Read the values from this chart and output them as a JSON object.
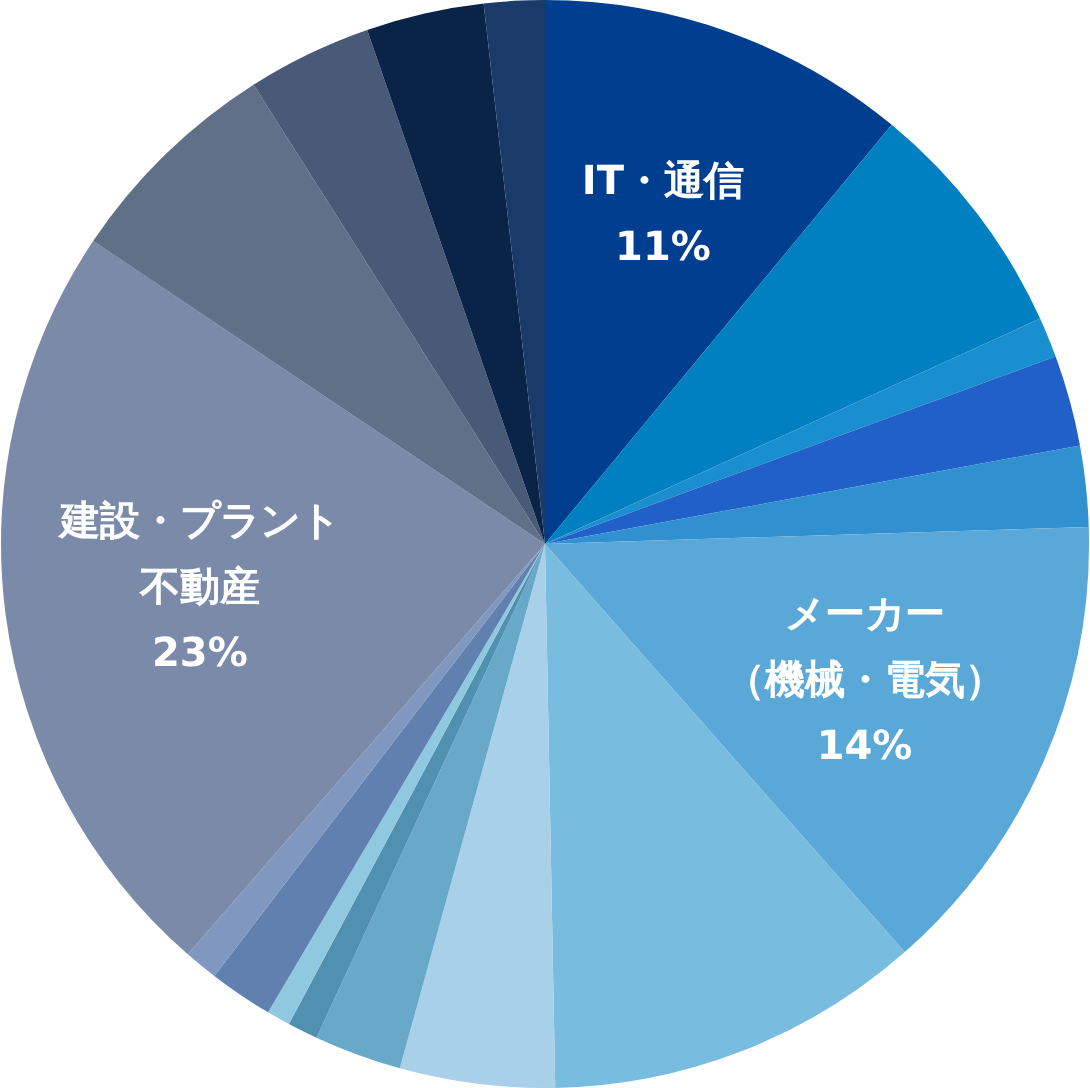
{
  "chart_data": {
    "type": "pie",
    "categories": [
      "IT・通信",
      null,
      null,
      null,
      null,
      "メーカー（機械・電気）",
      null,
      null,
      null,
      null,
      null,
      null,
      null,
      "建設・プラント不動産",
      null,
      null,
      null,
      null
    ],
    "values": [
      11,
      7.2,
      1.2,
      2.7,
      2.4,
      14,
      11.2,
      4.6,
      2.6,
      0.9,
      0.7,
      1.9,
      1.0,
      23,
      6.6,
      3.7,
      3.5,
      1.8
    ],
    "value_labels": [
      "11%",
      null,
      null,
      null,
      null,
      "14%",
      null,
      null,
      null,
      null,
      null,
      null,
      null,
      "23%",
      null,
      null,
      null,
      null
    ],
    "colors": [
      "#003f8f",
      "#0080c0",
      "#1a8fd0",
      "#2060c8",
      "#3090d0",
      "#5aa8d8",
      "#78bce0",
      "#a8d0e8",
      "#68a8c8",
      "#5090b0",
      "#90c8e0",
      "#6080b0",
      "#8098c0",
      "#7a8aa8",
      "#607088",
      "#485a78",
      "#0a2448",
      "#1a3a6a"
    ],
    "legend": false
  }
}
